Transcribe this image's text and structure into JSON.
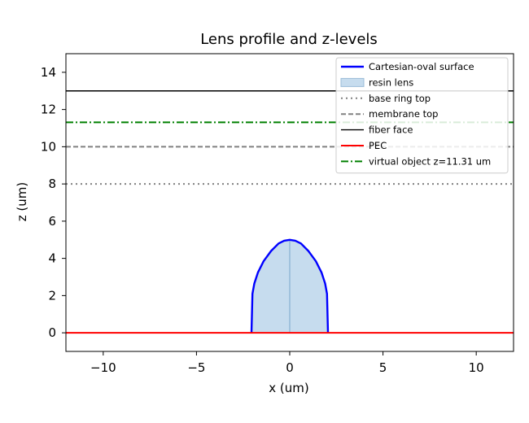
{
  "chart_data": {
    "type": "line",
    "title": "Lens profile and z-levels",
    "xlabel": "x (um)",
    "ylabel": "z (um)",
    "xlim": [
      -12,
      12
    ],
    "ylim": [
      -1,
      15
    ],
    "xticks": [
      -10,
      -5,
      0,
      5,
      10
    ],
    "xtick_labels": [
      "−10",
      "−5",
      "0",
      "5",
      "10"
    ],
    "yticks": [
      0,
      2,
      4,
      6,
      8,
      10,
      12,
      14
    ],
    "ytick_labels": [
      "0",
      "2",
      "4",
      "6",
      "8",
      "10",
      "12",
      "14"
    ],
    "grid": false,
    "legend_position": "top-right",
    "lens": {
      "name": "Cartesian-oval surface",
      "color": "#0000ff",
      "fill_name": "resin lens",
      "fill_color": "#c6dcee",
      "points": [
        [
          -2.05,
          0
        ],
        [
          -2.0,
          2.1
        ],
        [
          -1.9,
          2.65
        ],
        [
          -1.7,
          3.25
        ],
        [
          -1.4,
          3.85
        ],
        [
          -1.0,
          4.4
        ],
        [
          -0.6,
          4.8
        ],
        [
          -0.3,
          4.95
        ],
        [
          0,
          5.0
        ],
        [
          0.3,
          4.95
        ],
        [
          0.6,
          4.8
        ],
        [
          1.0,
          4.4
        ],
        [
          1.4,
          3.85
        ],
        [
          1.7,
          3.25
        ],
        [
          1.9,
          2.65
        ],
        [
          2.0,
          2.1
        ],
        [
          2.05,
          0
        ]
      ]
    },
    "levels": [
      {
        "name": "base ring top",
        "z": 8,
        "color": "#808080",
        "style": "dotted"
      },
      {
        "name": "membrane top",
        "z": 10,
        "color": "#808080",
        "style": "dashed"
      },
      {
        "name": "fiber face",
        "z": 13,
        "color": "#000000",
        "style": "solid"
      },
      {
        "name": "PEC",
        "z": 0,
        "color": "#ff0000",
        "style": "solid"
      },
      {
        "name": "virtual object z=11.31 um",
        "z": 11.31,
        "color": "#008000",
        "style": "dashdot"
      }
    ]
  }
}
